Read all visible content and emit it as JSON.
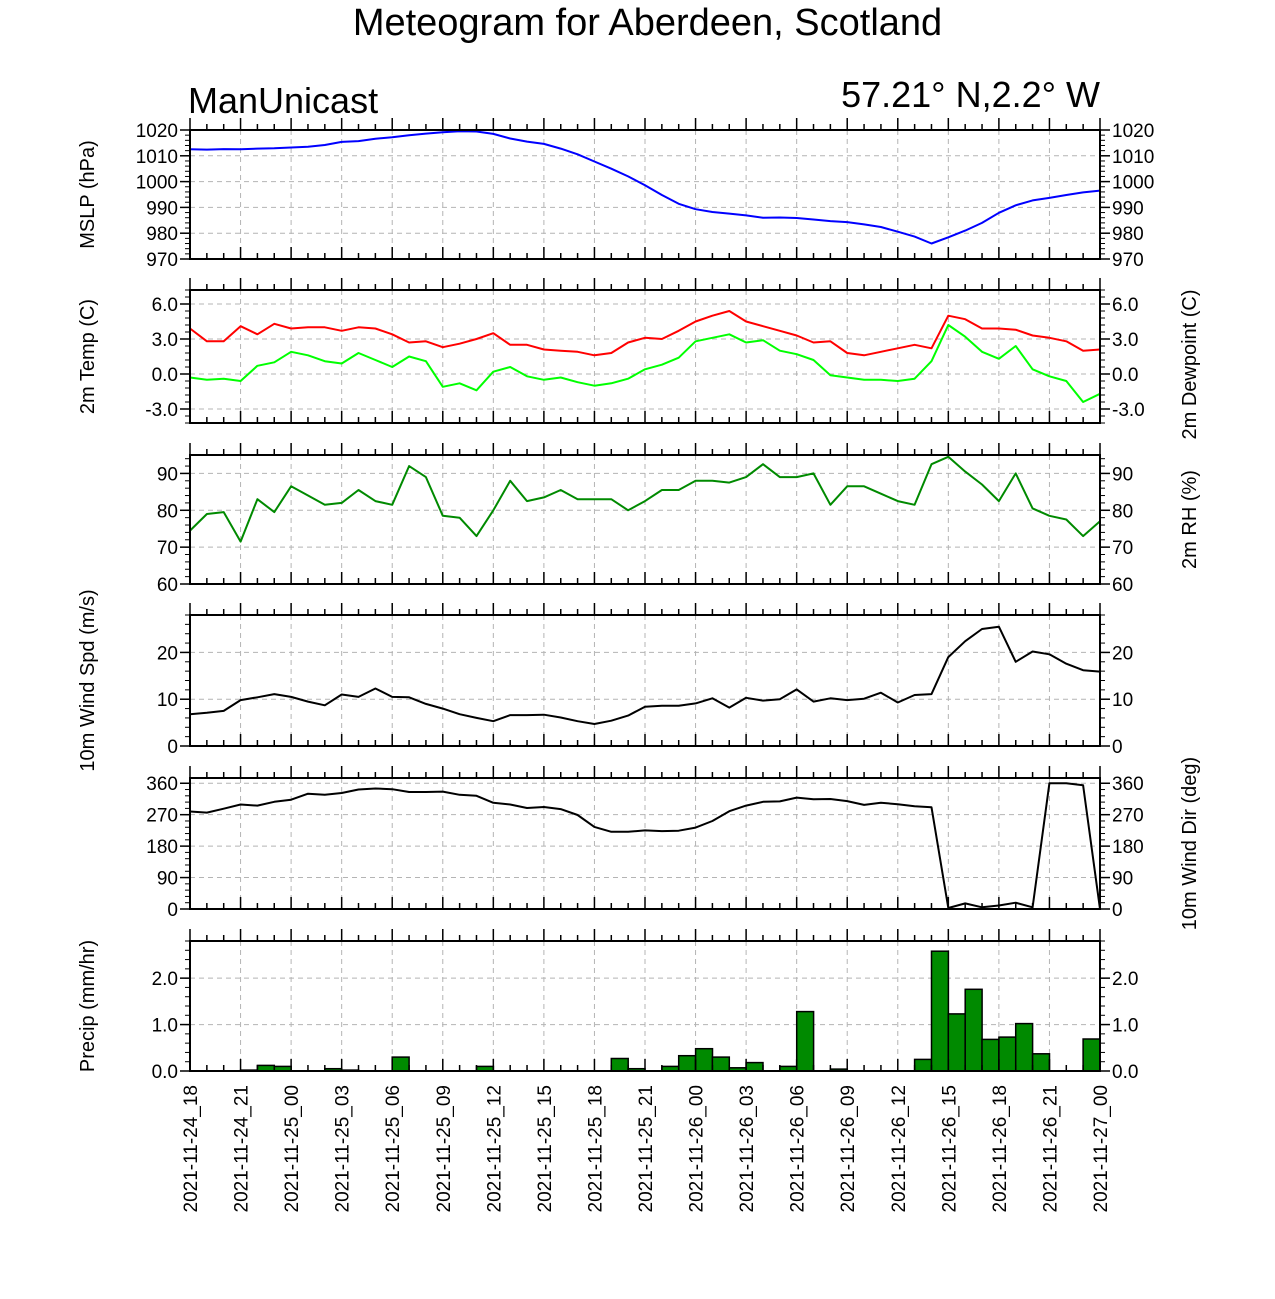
{
  "header": {
    "title": "Meteogram for Aberdeen, Scotland",
    "source": "ManUnicast",
    "coords": "57.21° N,2.2° W"
  },
  "time_axis": {
    "labels": [
      "2021-11-24_18",
      "2021-11-24_21",
      "2021-11-25_00",
      "2021-11-25_03",
      "2021-11-25_06",
      "2021-11-25_09",
      "2021-11-25_12",
      "2021-11-25_15",
      "2021-11-25_18",
      "2021-11-25_21",
      "2021-11-26_00",
      "2021-11-26_03",
      "2021-11-26_06",
      "2021-11-26_09",
      "2021-11-26_12",
      "2021-11-26_15",
      "2021-11-26_18",
      "2021-11-26_21",
      "2021-11-27_00"
    ]
  },
  "colors": {
    "mslp": "#0000ff",
    "temp": "#ff0000",
    "dewpoint": "#00ff00",
    "rh": "#008a00",
    "wind": "#000000",
    "precip_fill": "#008a00",
    "grid": "#b4b4b4"
  },
  "chart_data": [
    {
      "id": "mslp",
      "type": "line",
      "ylabel": "MSLP (hPa)",
      "ylim": [
        970,
        1020
      ],
      "yticks": [
        "970",
        "980",
        "990",
        "1000",
        "1010",
        "1020"
      ],
      "right_ticks": true,
      "x_hours": [
        0,
        1,
        2,
        3,
        4,
        5,
        6,
        7,
        8,
        9,
        10,
        11,
        12,
        13,
        14,
        15,
        16,
        17,
        18,
        19,
        20,
        21,
        22,
        23,
        24,
        25,
        26,
        27,
        28,
        29,
        30,
        31,
        32,
        33,
        34,
        35,
        36,
        37,
        38,
        39,
        40,
        41,
        42,
        43,
        44,
        45,
        46,
        47,
        48,
        49,
        50,
        51,
        52,
        53,
        54
      ],
      "series": [
        {
          "values": [
            1012.5,
            1012.4,
            1012.6,
            1012.5,
            1012.8,
            1012.9,
            1013.2,
            1013.5,
            1014.2,
            1015.4,
            1015.7,
            1016.6,
            1017.2,
            1018.0,
            1018.6,
            1019.1,
            1019.5,
            1019.4,
            1018.5,
            1016.7,
            1015.5,
            1014.6,
            1012.8,
            1010.6,
            1007.8,
            1005.0,
            1002.0,
            998.6,
            994.8,
            991.4,
            989.3,
            988.2,
            987.6,
            986.9,
            986.0,
            986.1,
            985.9,
            985.3,
            984.7,
            984.3,
            983.4,
            982.4,
            980.6,
            978.7,
            976.0,
            978.4,
            981.0,
            984.0,
            987.9,
            990.8,
            992.7,
            993.7,
            994.8,
            995.8,
            996.5
          ],
          "color": "#0000ff"
        }
      ]
    },
    {
      "id": "temp",
      "type": "line",
      "ylabel": "2m Temp (C)",
      "ylabel_right": "2m Dewpoint (C)",
      "ylim": [
        -4.2,
        7.2
      ],
      "yticks": [
        "-3.0",
        "0.0",
        "3.0",
        "6.0"
      ],
      "ytick_values": [
        -3,
        0,
        3,
        6
      ],
      "right_ticks": true,
      "x_hours": [
        0,
        1,
        2,
        3,
        4,
        5,
        6,
        7,
        8,
        9,
        10,
        11,
        12,
        13,
        14,
        15,
        16,
        17,
        18,
        19,
        20,
        21,
        22,
        23,
        24,
        25,
        26,
        27,
        28,
        29,
        30,
        31,
        32,
        33,
        34,
        35,
        36,
        37,
        38,
        39,
        40,
        41,
        42,
        43,
        44,
        45,
        46,
        47,
        48,
        49,
        50,
        51,
        52,
        53,
        54
      ],
      "series": [
        {
          "values": [
            3.9,
            2.8,
            2.8,
            4.1,
            3.4,
            4.3,
            3.9,
            4.0,
            4.0,
            3.7,
            4.0,
            3.9,
            3.4,
            2.7,
            2.8,
            2.3,
            2.6,
            3.0,
            3.5,
            2.5,
            2.5,
            2.1,
            2.0,
            1.9,
            1.6,
            1.8,
            2.7,
            3.1,
            3.0,
            3.7,
            4.5,
            5.0,
            5.4,
            4.5,
            4.1,
            3.7,
            3.3,
            2.7,
            2.8,
            1.8,
            1.6,
            1.9,
            2.2,
            2.5,
            2.2,
            5.0,
            4.7,
            3.9,
            3.9,
            3.8,
            3.3,
            3.1,
            2.8,
            2.0,
            2.1
          ],
          "color": "#ff0000"
        },
        {
          "values": [
            -0.3,
            -0.5,
            -0.4,
            -0.6,
            0.7,
            1.0,
            1.9,
            1.6,
            1.1,
            0.9,
            1.8,
            1.2,
            0.6,
            1.5,
            1.1,
            -1.1,
            -0.8,
            -1.4,
            0.2,
            0.6,
            -0.2,
            -0.5,
            -0.3,
            -0.7,
            -1.0,
            -0.8,
            -0.4,
            0.4,
            0.8,
            1.4,
            2.8,
            3.1,
            3.4,
            2.7,
            2.9,
            2.0,
            1.7,
            1.2,
            -0.1,
            -0.3,
            -0.5,
            -0.5,
            -0.6,
            -0.4,
            1.1,
            4.2,
            3.2,
            1.9,
            1.3,
            2.4,
            0.4,
            -0.2,
            -0.6,
            -2.4,
            -1.7
          ],
          "color": "#00ff00"
        }
      ]
    },
    {
      "id": "rh",
      "type": "line",
      "ylabel": "2m RH (%)",
      "ylabel_side": "right",
      "ylim": [
        60,
        95
      ],
      "yticks": [
        "60",
        "70",
        "80",
        "90"
      ],
      "ytick_values": [
        60,
        70,
        80,
        90
      ],
      "left_tick_labels": true,
      "right_ticks": true,
      "x_hours": [
        0,
        1,
        2,
        3,
        4,
        5,
        6,
        7,
        8,
        9,
        10,
        11,
        12,
        13,
        14,
        15,
        16,
        17,
        18,
        19,
        20,
        21,
        22,
        23,
        24,
        25,
        26,
        27,
        28,
        29,
        30,
        31,
        32,
        33,
        34,
        35,
        36,
        37,
        38,
        39,
        40,
        41,
        42,
        43,
        44,
        45,
        46,
        47,
        48,
        49,
        50,
        51,
        52,
        53,
        54
      ],
      "series": [
        {
          "values": [
            74.5,
            79,
            79.5,
            71.5,
            83,
            79.5,
            86.5,
            84,
            81.5,
            82,
            85.5,
            82.5,
            81.5,
            92,
            89,
            78.5,
            78,
            73,
            80,
            88,
            82.5,
            83.5,
            85.5,
            83,
            83,
            83,
            80,
            82.5,
            85.5,
            85.5,
            88,
            88,
            87.5,
            89,
            92.5,
            89,
            89,
            90,
            81.5,
            86.5,
            86.5,
            84.5,
            82.5,
            81.5,
            92.5,
            94.5,
            90.5,
            87,
            82.5,
            90,
            80.5,
            78.5,
            77.5,
            73,
            77
          ],
          "color": "#008a00"
        }
      ]
    },
    {
      "id": "wind_speed",
      "type": "line",
      "ylabel": "10m Wind Spd (m/s)",
      "ylim": [
        0,
        28
      ],
      "yticks": [
        "0",
        "10",
        "20"
      ],
      "ytick_values": [
        0,
        10,
        20
      ],
      "right_tick_labels": true,
      "right_ticks": true,
      "x_hours": [
        0,
        1,
        2,
        3,
        4,
        5,
        6,
        7,
        8,
        9,
        10,
        11,
        12,
        13,
        14,
        15,
        16,
        17,
        18,
        19,
        20,
        21,
        22,
        23,
        24,
        25,
        26,
        27,
        28,
        29,
        30,
        31,
        32,
        33,
        34,
        35,
        36,
        37,
        38,
        39,
        40,
        41,
        42,
        43,
        44,
        45,
        46,
        47,
        48,
        49,
        50,
        51,
        52,
        53,
        54
      ],
      "series": [
        {
          "values": [
            6.8,
            7.1,
            7.5,
            9.8,
            10.4,
            11.1,
            10.5,
            9.5,
            8.7,
            11.0,
            10.5,
            12.3,
            10.5,
            10.4,
            9.0,
            8.0,
            6.8,
            6.0,
            5.3,
            6.6,
            6.6,
            6.7,
            6.1,
            5.3,
            4.7,
            5.4,
            6.5,
            8.4,
            8.6,
            8.6,
            9.1,
            10.2,
            8.2,
            10.3,
            9.7,
            10.0,
            12.1,
            9.5,
            10.2,
            9.8,
            10.1,
            11.4,
            9.3,
            10.9,
            11.1,
            19.0,
            22.4,
            25.0,
            25.5,
            18.0,
            20.2,
            19.6,
            17.6,
            16.2,
            15.9
          ],
          "color": "#000000"
        }
      ]
    },
    {
      "id": "wind_dir",
      "type": "line",
      "ylabel": "10m Wind Dir (deg)",
      "ylabel_side": "right",
      "ylim": [
        0,
        375
      ],
      "yticks": [
        "0",
        "90",
        "180",
        "270",
        "360"
      ],
      "ytick_values": [
        0,
        90,
        180,
        270,
        360
      ],
      "left_tick_labels": true,
      "right_tick_labels": true,
      "right_ticks": true,
      "x_hours": [
        0,
        1,
        2,
        3,
        4,
        5,
        6,
        7,
        8,
        9,
        10,
        11,
        12,
        13,
        14,
        15,
        16,
        17,
        18,
        19,
        20,
        21,
        22,
        23,
        24,
        25,
        26,
        27,
        28,
        29,
        30,
        31,
        32,
        33,
        34,
        35,
        36,
        37,
        38,
        39,
        40,
        41,
        42,
        43,
        44,
        45,
        46,
        47,
        48,
        49,
        50,
        51,
        52,
        53,
        54
      ],
      "series": [
        {
          "values": [
            279,
            276,
            287,
            299,
            296,
            307,
            313,
            330,
            327,
            332,
            342,
            345,
            343,
            335,
            335,
            336,
            327,
            324,
            304,
            299,
            289,
            292,
            286,
            269,
            235,
            221,
            221,
            225,
            223,
            224,
            233,
            252,
            280,
            296,
            307,
            308,
            319,
            314,
            315,
            309,
            298,
            304,
            300,
            294,
            291,
            3,
            16,
            5,
            10,
            18,
            5,
            360,
            360,
            354,
            0
          ],
          "color": "#000000"
        }
      ]
    },
    {
      "id": "precip",
      "type": "bar",
      "ylabel": "Precip (mm/hr)",
      "ylim": [
        0,
        2.8
      ],
      "yticks": [
        "0.0",
        "1.0",
        "2.0"
      ],
      "ytick_values": [
        0,
        1,
        2
      ],
      "right_tick_labels": true,
      "right_ticks": true,
      "x_hours": [
        4,
        5,
        6,
        9,
        10,
        13,
        18,
        26,
        27,
        29,
        30,
        31,
        32,
        33,
        34,
        36,
        37,
        39,
        44,
        45,
        46,
        47,
        48,
        49,
        50,
        51,
        54
      ],
      "series": [
        {
          "values": [
            0.02,
            0.12,
            0.1,
            0.05,
            0.02,
            0.3,
            0.1,
            0.27,
            0.05,
            0.1,
            0.33,
            0.48,
            0.3,
            0.07,
            0.18,
            0.1,
            1.28,
            0.04,
            0.25,
            2.58,
            1.23,
            1.76,
            0.68,
            0.73,
            1.02,
            0.37,
            0.69
          ],
          "color": "#008a00"
        }
      ]
    }
  ]
}
